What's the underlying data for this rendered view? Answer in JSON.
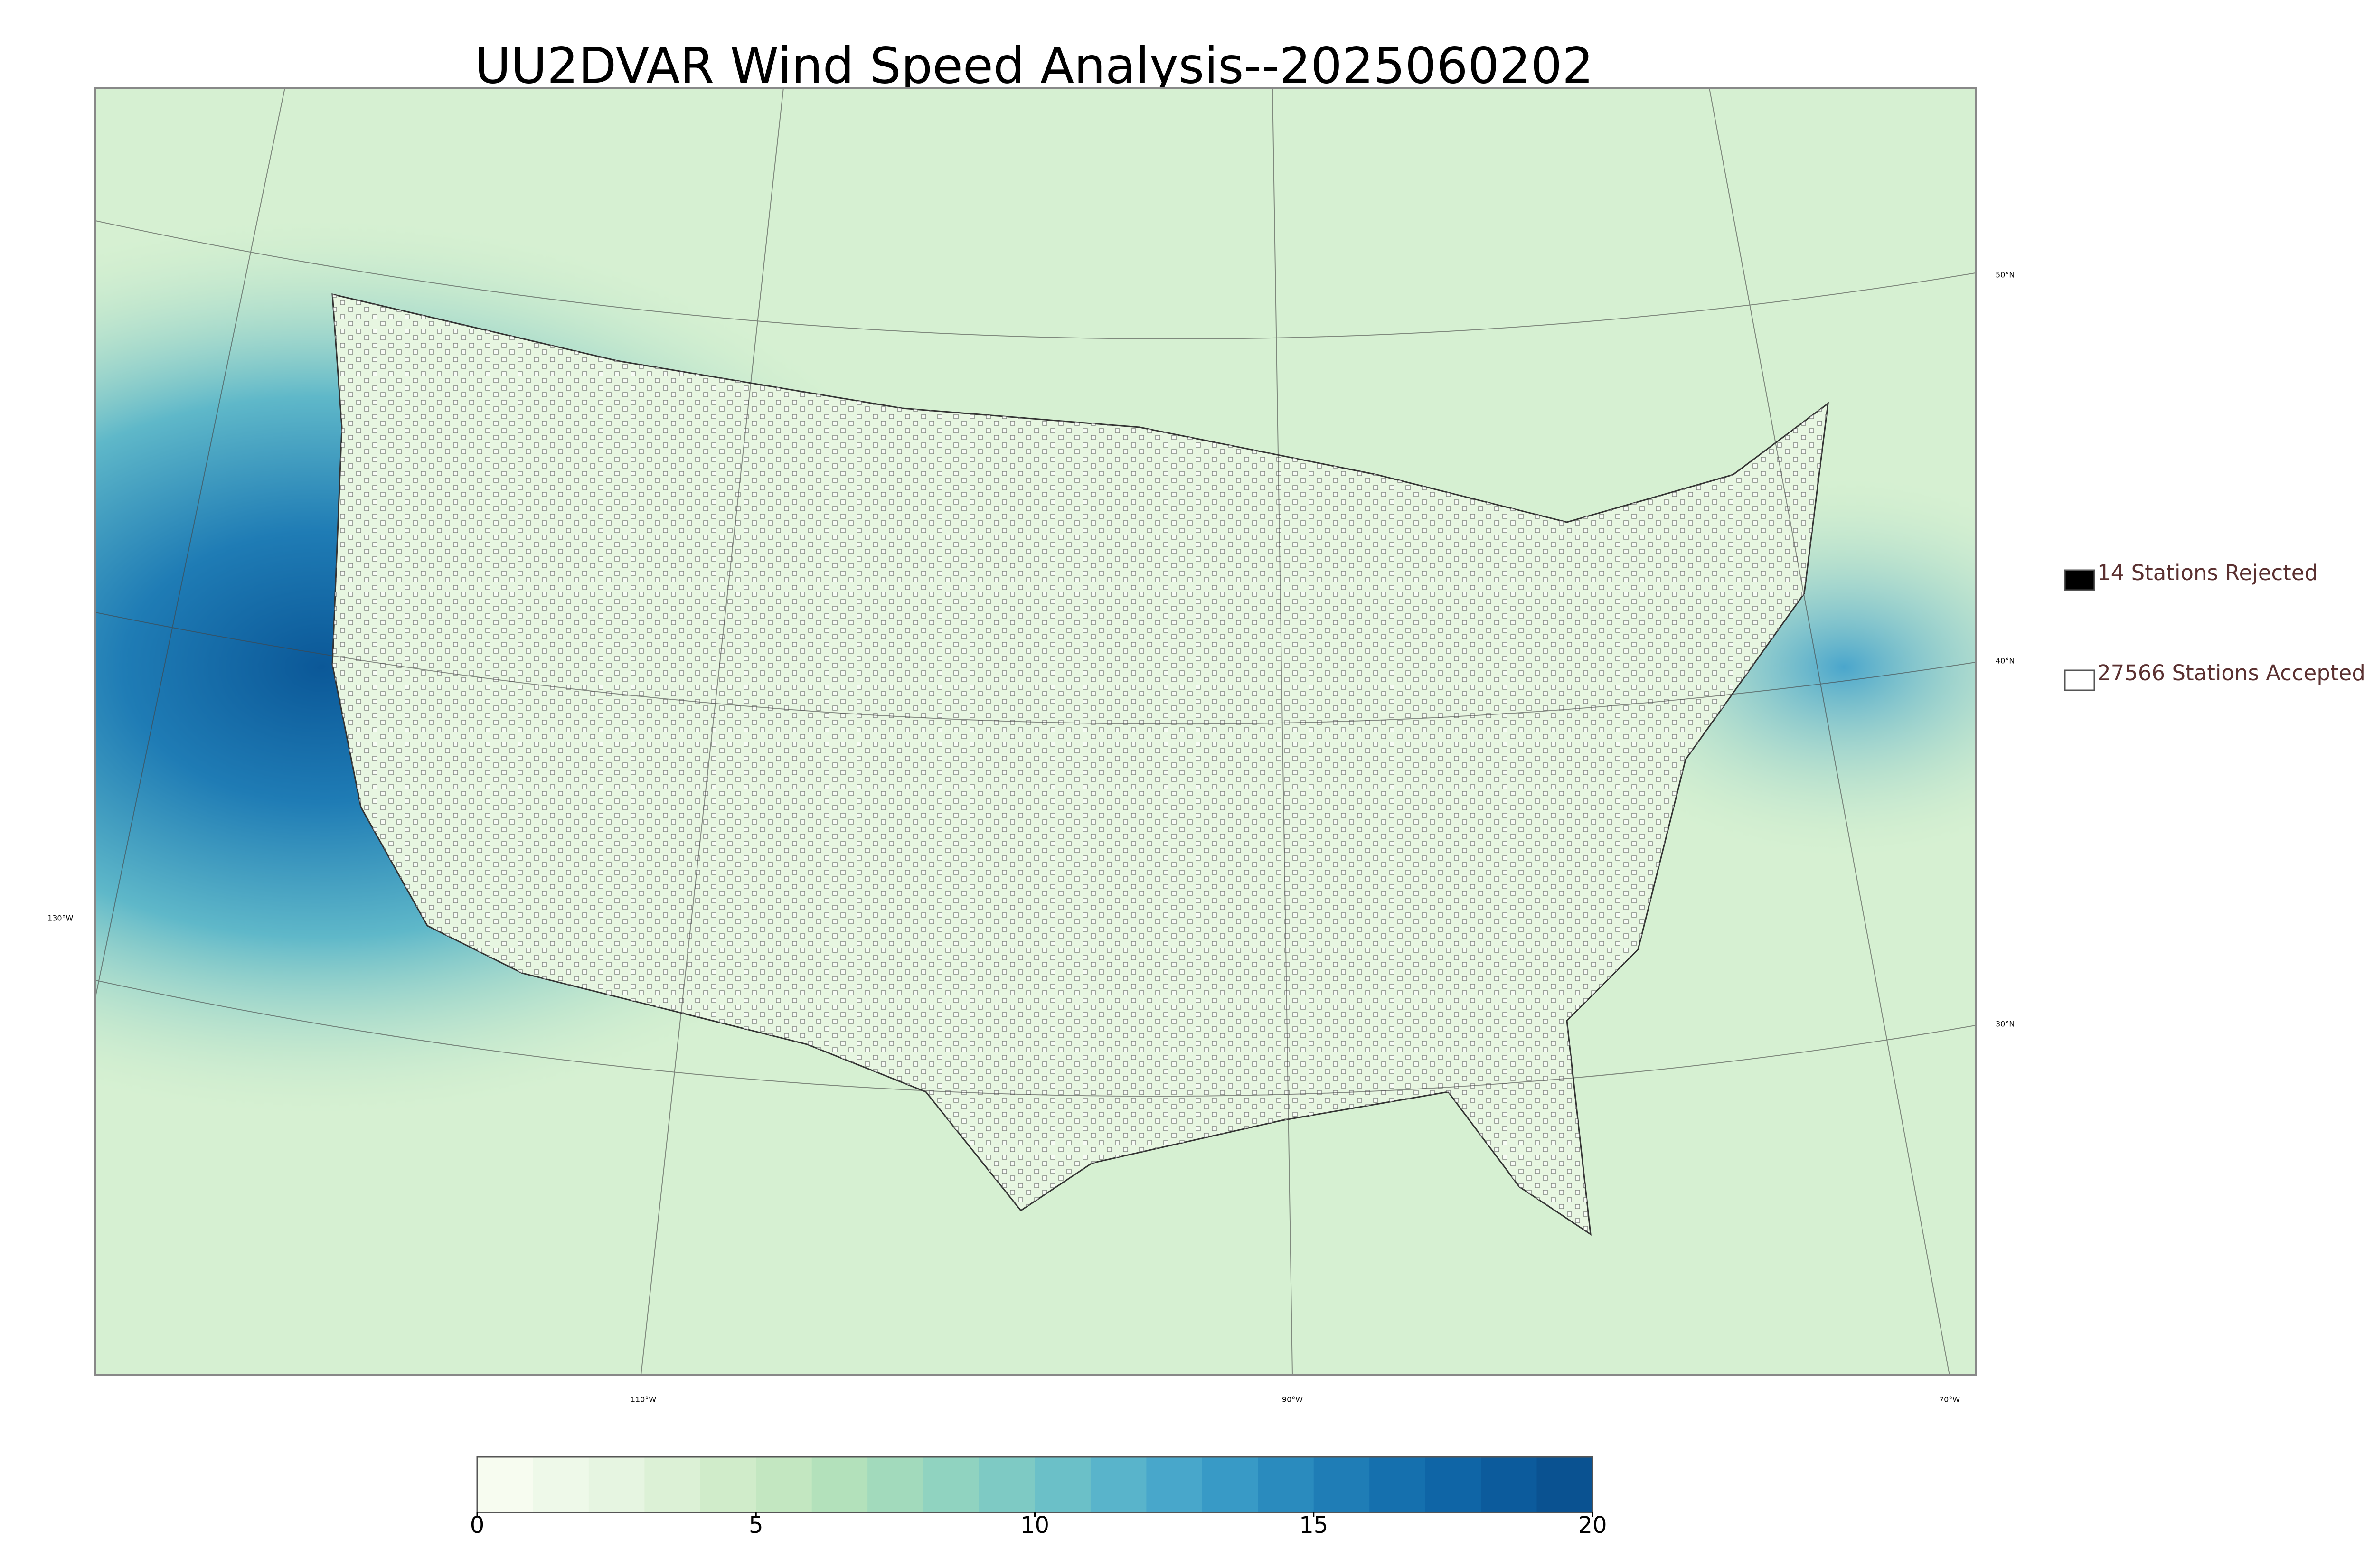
{
  "header": {
    "title": "UU2DVAR Wind Speed Analysis--2025060202"
  },
  "map": {
    "lat_labels": [
      "50°N",
      "40°N",
      "30°N"
    ],
    "lon_labels": [
      "130°W",
      "110°W",
      "90°W",
      "70°W"
    ]
  },
  "legend": {
    "entries": [
      {
        "label": "14 Stations Rejected",
        "marker_fill": "#000000"
      },
      {
        "label": "27566 Stations Accepted",
        "marker_fill": "#ffffff"
      }
    ]
  },
  "colorbar": {
    "range": [
      0,
      20
    ],
    "ticks": [
      0,
      5,
      10,
      15,
      20
    ],
    "colors": [
      "#f7fcf0",
      "#eef9e9",
      "#e6f5e1",
      "#dcf1d6",
      "#d0ecca",
      "#c3e7c1",
      "#b3e1bb",
      "#a2dabc",
      "#90d3c0",
      "#7ecac4",
      "#6bc0c8",
      "#59b4cb",
      "#48a7cb",
      "#389ac6",
      "#2a8bbe",
      "#1f7db6",
      "#1570ae",
      "#0f65a6",
      "#0c5b9c",
      "#0a5291"
    ]
  }
}
